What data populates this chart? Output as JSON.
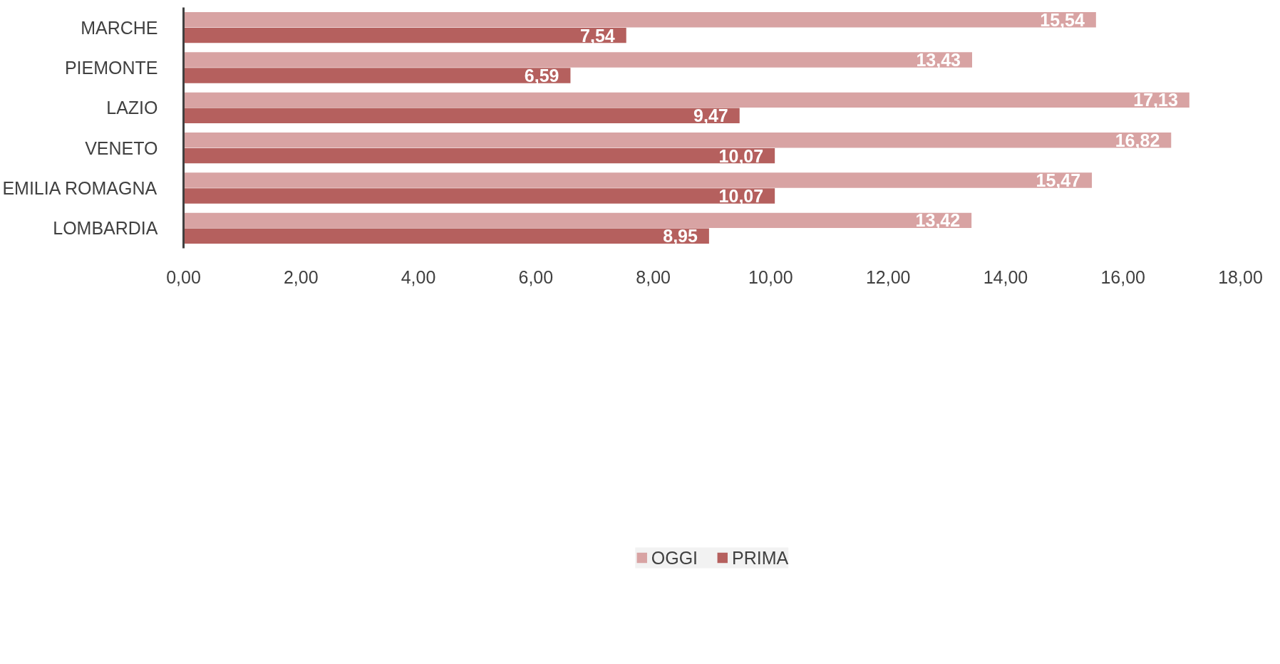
{
  "chart_data": {
    "type": "bar",
    "orientation": "horizontal",
    "categories": [
      "MARCHE",
      "PIEMONTE",
      "LAZIO",
      "VENETO",
      "EMILIA ROMAGNA",
      "LOMBARDIA"
    ],
    "series": [
      {
        "name": "OGGI",
        "color": "#d8a3a3",
        "values": [
          15.54,
          13.43,
          17.13,
          16.82,
          15.47,
          13.42
        ],
        "value_labels": [
          "15,54",
          "13,43",
          "17,13",
          "16,82",
          "15,47",
          "13,42"
        ]
      },
      {
        "name": "PRIMA",
        "color": "#b5605e",
        "values": [
          7.54,
          6.59,
          9.47,
          10.07,
          10.07,
          8.95
        ],
        "value_labels": [
          "7,54",
          "6,59",
          "9,47",
          "10,07",
          "10,07",
          "8,95"
        ]
      }
    ],
    "xlim": [
      0,
      18
    ],
    "xticks": [
      {
        "value": 0,
        "label": "0,00"
      },
      {
        "value": 2,
        "label": "2,00"
      },
      {
        "value": 4,
        "label": "4,00"
      },
      {
        "value": 6,
        "label": "6,00"
      },
      {
        "value": 8,
        "label": "8,00"
      },
      {
        "value": 10,
        "label": "10,00"
      },
      {
        "value": 12,
        "label": "12,00"
      },
      {
        "value": 14,
        "label": "14,00"
      },
      {
        "value": 16,
        "label": "16,00"
      },
      {
        "value": 18,
        "label": "18,00"
      }
    ],
    "grid": false,
    "legend": "bottom"
  }
}
